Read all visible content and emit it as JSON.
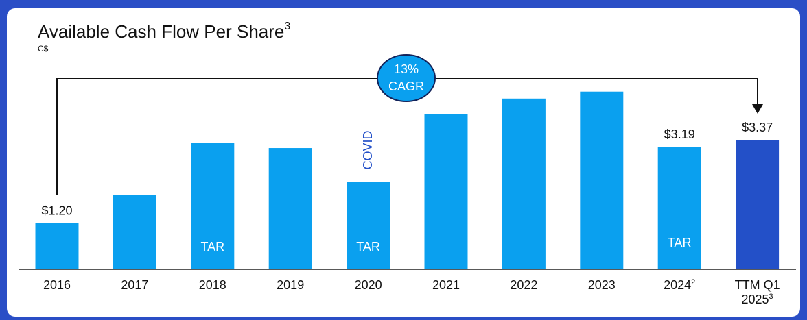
{
  "chart_data": {
    "type": "bar",
    "title": "Available Cash Flow Per Share",
    "title_note": "3",
    "subtitle": "C$",
    "categories": [
      "2016",
      "2017",
      "2018",
      "2019",
      "2020",
      "2021",
      "2022",
      "2023",
      "2024",
      "TTM Q1 2025"
    ],
    "category_notes": [
      null,
      null,
      null,
      null,
      null,
      null,
      null,
      null,
      "2",
      "3"
    ],
    "values": [
      1.2,
      1.93,
      3.3,
      3.16,
      2.27,
      4.05,
      4.45,
      4.63,
      3.19,
      3.37
    ],
    "value_labels": [
      "$1.20",
      null,
      null,
      null,
      null,
      null,
      null,
      null,
      "$3.19",
      "$3.37"
    ],
    "colors": [
      "#0aa0ef",
      "#0aa0ef",
      "#0aa0ef",
      "#0aa0ef",
      "#0aa0ef",
      "#0aa0ef",
      "#0aa0ef",
      "#0aa0ef",
      "#0aa0ef",
      "#2350c8"
    ],
    "bar_notes": [
      null,
      null,
      "TAR",
      null,
      "TAR",
      null,
      null,
      null,
      "TAR",
      null
    ],
    "cagr_value": "13%",
    "cagr_label": "CAGR",
    "covid_note": "COVID"
  }
}
